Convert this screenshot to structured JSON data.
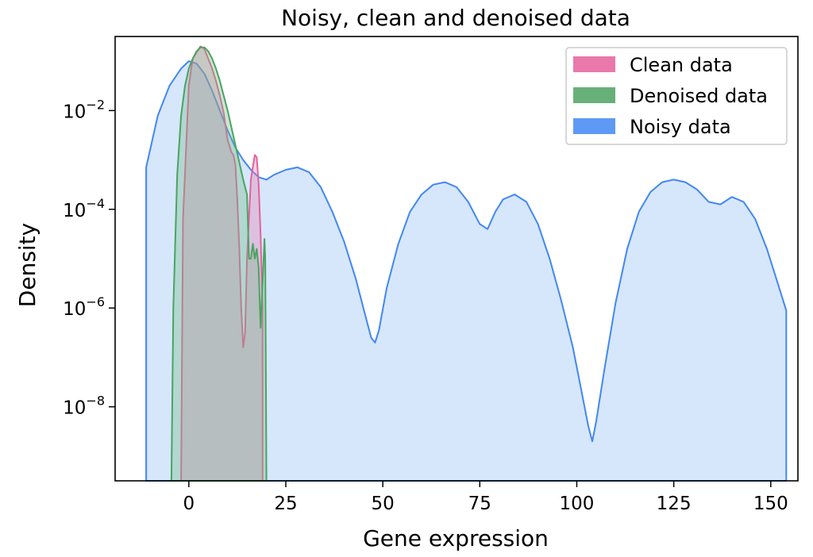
{
  "chart_data": {
    "type": "area",
    "title": "Noisy, clean and denoised data",
    "xlabel": "Gene expression",
    "ylabel": "Density",
    "xlim": [
      -19,
      157
    ],
    "ylim_log10": [
      -9.5,
      -0.5
    ],
    "y_scale": "log",
    "xticks": [
      0,
      25,
      50,
      75,
      100,
      125,
      150
    ],
    "yticks": [
      {
        "exp": -2,
        "base": "10",
        "sup": "−2"
      },
      {
        "exp": -4,
        "base": "10",
        "sup": "−4"
      },
      {
        "exp": -6,
        "base": "10",
        "sup": "−6"
      },
      {
        "exp": -8,
        "base": "10",
        "sup": "−8"
      }
    ],
    "grid": false,
    "legend": {
      "placement": "top-right"
    },
    "series": [
      {
        "name": "Noisy data",
        "color": "#4287f5",
        "fill": "#d6e7fb",
        "x": [
          -11,
          -11,
          -8,
          -5,
          -2,
          0,
          2,
          4,
          6,
          8,
          10,
          12,
          14,
          16,
          18,
          20,
          22,
          25,
          28,
          31,
          34,
          37,
          40,
          43,
          45,
          47,
          48,
          49,
          51,
          54,
          57,
          60,
          63,
          66,
          69,
          72,
          75,
          77,
          79,
          81,
          84,
          87,
          90,
          93,
          96,
          99,
          101,
          103,
          104,
          105,
          107,
          110,
          113,
          116,
          119,
          122,
          125,
          128,
          131,
          134,
          137,
          140,
          143,
          146,
          149,
          152,
          154,
          154
        ],
        "log10y": [
          -9.5,
          -3.15,
          -2.1,
          -1.5,
          -1.15,
          -1.0,
          -1.05,
          -1.25,
          -1.6,
          -2.0,
          -2.4,
          -2.75,
          -3.0,
          -3.2,
          -3.35,
          -3.4,
          -3.3,
          -3.2,
          -3.15,
          -3.25,
          -3.55,
          -4.05,
          -4.65,
          -5.4,
          -6.0,
          -6.6,
          -6.7,
          -6.45,
          -5.6,
          -4.7,
          -4.05,
          -3.7,
          -3.5,
          -3.45,
          -3.55,
          -3.85,
          -4.3,
          -4.4,
          -4.05,
          -3.8,
          -3.7,
          -3.85,
          -4.3,
          -5.0,
          -5.85,
          -6.8,
          -7.6,
          -8.4,
          -8.7,
          -8.3,
          -7.3,
          -5.9,
          -4.8,
          -4.05,
          -3.65,
          -3.45,
          -3.4,
          -3.45,
          -3.6,
          -3.85,
          -3.9,
          -3.75,
          -3.85,
          -4.2,
          -4.8,
          -5.55,
          -6.05,
          -9.5
        ]
      },
      {
        "name": "Clean data",
        "color": "#e6609b",
        "fill": "rgba(235,120,175,0.35)",
        "x": [
          -2,
          -1.5,
          0,
          1,
          2,
          3,
          4,
          5,
          6,
          7,
          8,
          9,
          10,
          11,
          11.5,
          12,
          12.5,
          13,
          13.5,
          14,
          14.5,
          15,
          16,
          17,
          17.5,
          18,
          18.5,
          19,
          19
        ],
        "log10y": [
          -9.5,
          -4.2,
          -1.5,
          -0.95,
          -0.82,
          -0.7,
          -0.75,
          -0.95,
          -1.15,
          -1.4,
          -1.7,
          -2.05,
          -2.6,
          -2.85,
          -2.9,
          -3.1,
          -3.8,
          -4.8,
          -6.0,
          -6.8,
          -6.5,
          -5.0,
          -3.4,
          -2.9,
          -2.95,
          -3.5,
          -4.5,
          -6.0,
          -9.5
        ]
      },
      {
        "name": "Denoised data",
        "color": "#4ca362",
        "fill": "rgba(110,185,130,0.35)",
        "x": [
          -4.5,
          -4,
          -3,
          -2,
          -1,
          0,
          1,
          2,
          3,
          4,
          5,
          6,
          7,
          8,
          9,
          10,
          11,
          12,
          13,
          14,
          15,
          15.5,
          16,
          16.5,
          17,
          17.5,
          18,
          18.5,
          19,
          19.5,
          19.7,
          20,
          20
        ],
        "log10y": [
          -9.5,
          -6.0,
          -3.3,
          -2.1,
          -1.5,
          -1.15,
          -0.95,
          -0.8,
          -0.72,
          -0.72,
          -0.8,
          -0.95,
          -1.15,
          -1.4,
          -1.7,
          -2.0,
          -2.35,
          -2.7,
          -3.05,
          -3.4,
          -3.7,
          -5.0,
          -5.0,
          -4.7,
          -5.0,
          -4.8,
          -5.2,
          -6.4,
          -5.5,
          -4.6,
          -5.0,
          -9.5,
          -9.5
        ]
      }
    ]
  }
}
